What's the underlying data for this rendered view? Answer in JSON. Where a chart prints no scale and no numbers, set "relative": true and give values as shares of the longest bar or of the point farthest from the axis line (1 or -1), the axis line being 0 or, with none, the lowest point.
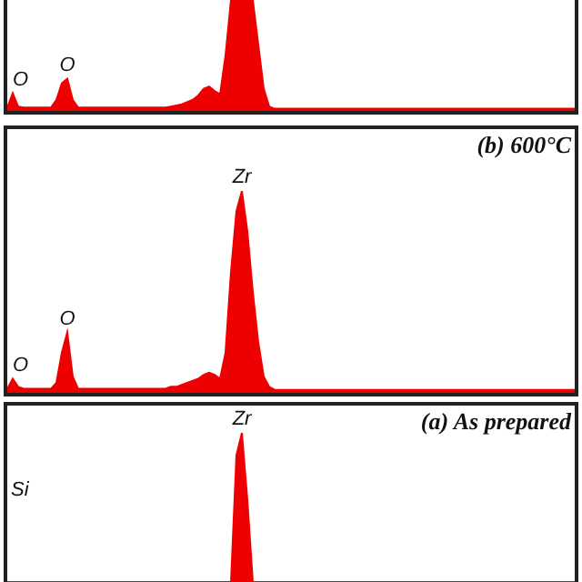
{
  "chart_data": [
    {
      "type": "area",
      "relative": true,
      "color": "#ee0000",
      "categories": [
        null,
        null,
        null,
        null,
        null,
        null,
        null,
        null,
        null,
        null,
        null,
        null,
        null,
        null,
        null,
        null,
        null,
        null,
        null,
        null,
        null,
        null,
        null,
        null,
        null,
        null,
        null,
        null,
        null,
        null,
        null,
        null,
        null,
        null,
        null,
        null,
        null,
        null,
        null,
        null,
        null,
        null,
        null,
        null,
        null,
        null,
        null,
        null,
        null,
        null,
        null,
        null,
        null,
        null,
        null,
        null,
        null,
        null,
        null,
        null,
        null,
        null,
        null,
        null,
        null,
        null,
        null,
        null,
        null,
        null,
        null,
        null,
        null,
        null,
        null,
        null,
        null,
        null,
        null,
        null,
        null,
        null,
        null,
        null,
        null,
        null,
        null,
        null,
        null,
        null,
        null,
        null,
        null,
        null,
        null,
        null,
        null,
        null,
        null,
        null,
        null,
        null,
        null,
        null,
        null
      ],
      "values": [
        0.03,
        0.16,
        0.04,
        0.03,
        0.03,
        0.03,
        0.03,
        0.03,
        0.03,
        0.1,
        0.25,
        0.29,
        0.1,
        0.03,
        0.03,
        0.03,
        0.03,
        0.03,
        0.03,
        0.03,
        0.03,
        0.03,
        0.03,
        0.03,
        0.03,
        0.03,
        0.03,
        0.03,
        0.03,
        0.03,
        0.04,
        0.05,
        0.06,
        0.08,
        0.1,
        0.14,
        0.2,
        0.22,
        0.18,
        0.15,
        0.5,
        1,
        1,
        1,
        1,
        1,
        0.6,
        0.2,
        0.04,
        0.02,
        0.02,
        0.02,
        0.02,
        0.02,
        0.02,
        0.02,
        0.02,
        0.02,
        0.02,
        0.02,
        0.02,
        0.02,
        0.02,
        0.02,
        0.02,
        0.02,
        0.02,
        0.02,
        0.02,
        0.02,
        0.02,
        0.02,
        0.02,
        0.02,
        0.02,
        0.02,
        0.02,
        0.02,
        0.02,
        0.02,
        0.02,
        0.02,
        0.02,
        0.02,
        0.02,
        0.02,
        0.02,
        0.02,
        0.02,
        0.02,
        0.02,
        0.02,
        0.02,
        0.02,
        0.02,
        0.02,
        0.02,
        0.02,
        0.02,
        0.02,
        0.02,
        0.02,
        0.02,
        0.02,
        0.02
      ],
      "annotations": [
        {
          "text": "O",
          "y": 0.16
        },
        {
          "text": "O",
          "y": 0.29
        }
      ]
    },
    {
      "type": "area",
      "relative": true,
      "color": "#ee0000",
      "title": "(b) 600°C",
      "categories": [
        null,
        null,
        null,
        null,
        null,
        null,
        null,
        null,
        null,
        null,
        null,
        null,
        null,
        null,
        null,
        null,
        null,
        null,
        null,
        null,
        null,
        null,
        null,
        null,
        null,
        null,
        null,
        null,
        null,
        null,
        null,
        null,
        null,
        null,
        null,
        null,
        null,
        null,
        null,
        null,
        null,
        null,
        null,
        null,
        null,
        null,
        null,
        null,
        null,
        null,
        null,
        null,
        null,
        null,
        null,
        null,
        null,
        null,
        null,
        null,
        null,
        null,
        null,
        null,
        null,
        null,
        null,
        null,
        null,
        null,
        null,
        null,
        null,
        null,
        null,
        null,
        null,
        null,
        null,
        null,
        null,
        null,
        null,
        null,
        null,
        null,
        null,
        null,
        null,
        null,
        null,
        null,
        null,
        null,
        null,
        null,
        null,
        null,
        null,
        null,
        null,
        null,
        null,
        null,
        null
      ],
      "values": [
        0.02,
        0.07,
        0.03,
        0.02,
        0.02,
        0.02,
        0.02,
        0.02,
        0.02,
        0.05,
        0.2,
        0.3,
        0.08,
        0.02,
        0.02,
        0.02,
        0.02,
        0.02,
        0.02,
        0.02,
        0.02,
        0.02,
        0.02,
        0.02,
        0.02,
        0.02,
        0.02,
        0.02,
        0.02,
        0.02,
        0.03,
        0.03,
        0.04,
        0.05,
        0.06,
        0.07,
        0.09,
        0.1,
        0.09,
        0.07,
        0.2,
        0.6,
        0.9,
        1,
        0.8,
        0.5,
        0.25,
        0.08,
        0.03,
        0.015,
        0.015,
        0.015,
        0.015,
        0.015,
        0.015,
        0.015,
        0.015,
        0.015,
        0.015,
        0.015,
        0.015,
        0.015,
        0.015,
        0.015,
        0.015,
        0.015,
        0.015,
        0.015,
        0.015,
        0.015,
        0.015,
        0.015,
        0.015,
        0.015,
        0.015,
        0.015,
        0.015,
        0.015,
        0.015,
        0.015,
        0.015,
        0.015,
        0.015,
        0.015,
        0.015,
        0.015,
        0.015,
        0.015,
        0.015,
        0.015,
        0.015,
        0.015,
        0.015,
        0.015,
        0.015,
        0.015,
        0.015,
        0.015,
        0.015,
        0.015,
        0.015,
        0.015,
        0.015,
        0.015,
        0.015
      ],
      "annotations": [
        {
          "text": "O",
          "y": 0.07
        },
        {
          "text": "O",
          "y": 0.3
        },
        {
          "text": "Zr",
          "y": 1
        }
      ]
    },
    {
      "type": "area",
      "relative": true,
      "color": "#ee0000",
      "title": "(a) As prepared",
      "categories": [
        null,
        null,
        null,
        null,
        null,
        null,
        null,
        null,
        null,
        null,
        null,
        null,
        null,
        null,
        null,
        null,
        null,
        null,
        null,
        null,
        null,
        null,
        null,
        null,
        null,
        null,
        null,
        null,
        null,
        null,
        null,
        null,
        null,
        null,
        null,
        null,
        null,
        null,
        null,
        null,
        null,
        null,
        null,
        null,
        null,
        null,
        null,
        null,
        null,
        null,
        null,
        null,
        null,
        null,
        null,
        null,
        null,
        null,
        null,
        null,
        null,
        null,
        null,
        null,
        null,
        null,
        null,
        null,
        null,
        null,
        null,
        null,
        null,
        null,
        null,
        null,
        null,
        null,
        null,
        null,
        null,
        null,
        null,
        null,
        null,
        null,
        null,
        null,
        null,
        null,
        null,
        null,
        null,
        null,
        null,
        null,
        null,
        null,
        null,
        null,
        null,
        null,
        null,
        null,
        null
      ],
      "values": [
        0,
        0,
        0,
        0,
        0,
        0,
        0,
        0,
        0,
        0,
        0,
        0,
        0,
        0,
        0,
        0,
        0,
        0,
        0,
        0,
        0,
        0,
        0,
        0,
        0,
        0,
        0,
        0,
        0,
        0,
        0,
        0,
        0,
        0,
        0,
        0,
        0,
        0,
        0,
        0,
        0,
        0,
        0.85,
        1,
        0.55,
        0,
        0,
        0,
        0,
        0,
        0,
        0,
        0,
        0,
        0,
        0,
        0,
        0,
        0,
        0,
        0,
        0,
        0,
        0,
        0,
        0,
        0,
        0,
        0,
        0,
        0,
        0,
        0,
        0,
        0,
        0,
        0,
        0,
        0,
        0,
        0,
        0,
        0,
        0,
        0,
        0,
        0,
        0,
        0,
        0,
        0,
        0,
        0,
        0,
        0,
        0,
        0,
        0,
        0,
        0,
        0,
        0,
        0,
        0,
        0
      ],
      "annotations": [
        {
          "text": "Zr",
          "y": 1
        },
        "Si"
      ]
    }
  ]
}
